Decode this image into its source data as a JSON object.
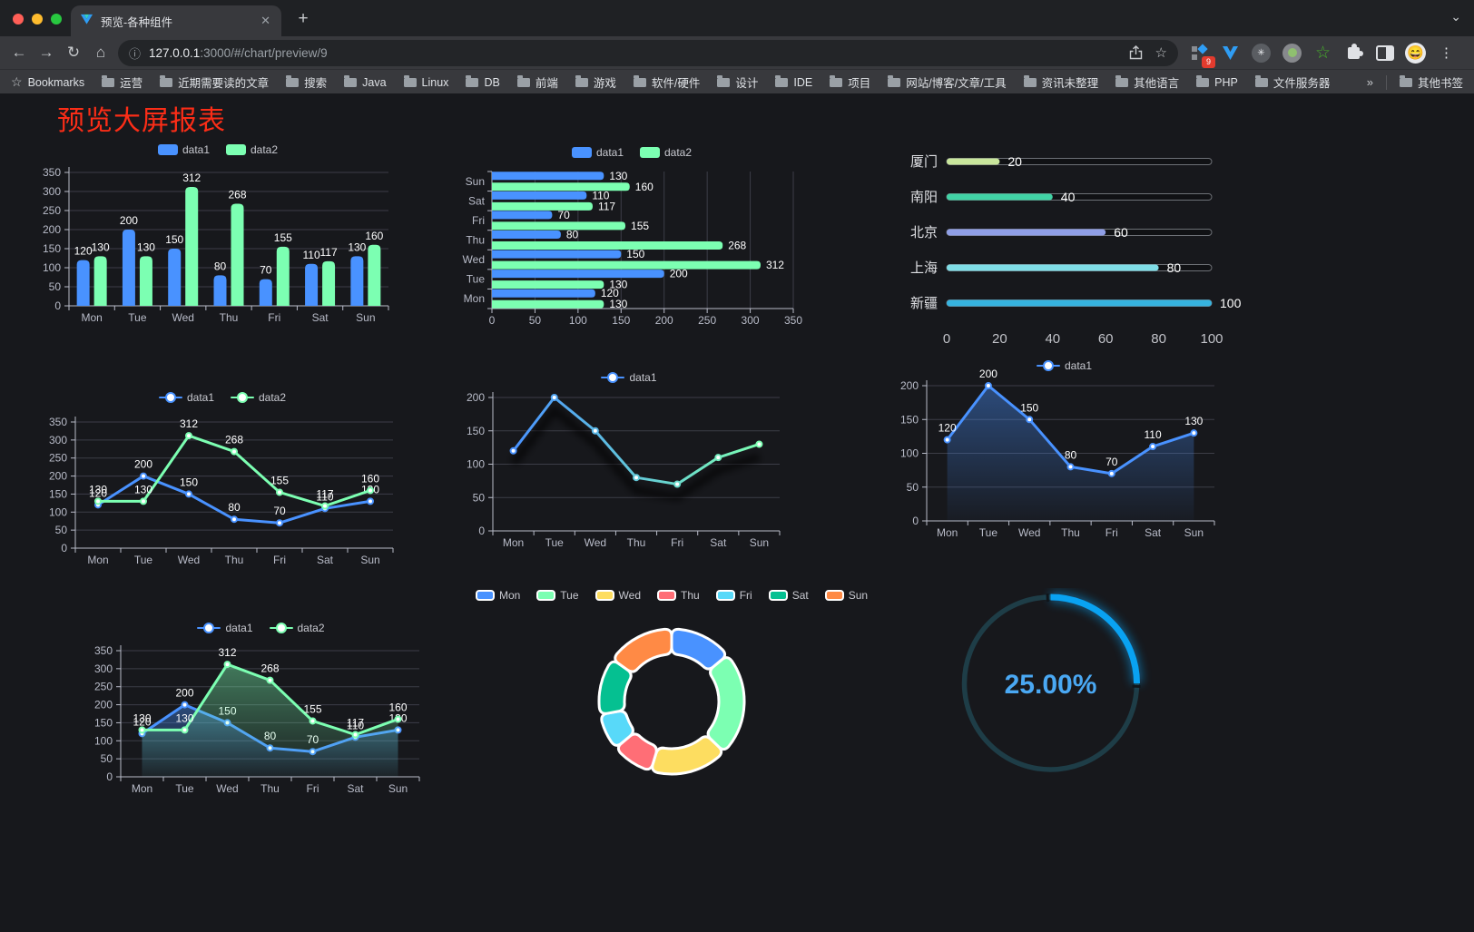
{
  "browser": {
    "tab_title": "预览-各种组件",
    "new_tab_glyph": "+",
    "close_glyph": "✕",
    "tab_search_glyph": "⌄",
    "url_host": "127.0.0.1",
    "url_rest": ":3000/#/chart/preview/9",
    "back_glyph": "←",
    "forward_glyph": "→",
    "reload_glyph": "↻",
    "home_glyph": "⌂",
    "info_glyph": "ⓘ",
    "star_glyph": "☆",
    "extension_badge": "9",
    "menu_glyph": "⋮",
    "avatar_glyph": "😄",
    "bookmarks_label": "Bookmarks",
    "bookmarks": [
      "运营",
      "近期需要读的文章",
      "搜索",
      "Java",
      "Linux",
      "DB",
      "前端",
      "游戏",
      "软件/硬件",
      "设计",
      "IDE",
      "项目",
      "网站/博客/文章/工具",
      "资讯未整理",
      "其他语言",
      "PHP",
      "文件服务器"
    ],
    "overflow_chevron": "»",
    "other_bookmarks": "其他书签"
  },
  "page": {
    "title": "预览大屏报表",
    "title_color": "#fb2d17",
    "background": "#17181c"
  },
  "chart_data": [
    {
      "id": "bar-v",
      "type": "bar",
      "categories": [
        "Mon",
        "Tue",
        "Wed",
        "Thu",
        "Fri",
        "Sat",
        "Sun"
      ],
      "series": [
        {
          "name": "data1",
          "color": "#4992ff",
          "values": [
            120,
            200,
            150,
            80,
            70,
            110,
            130
          ]
        },
        {
          "name": "data2",
          "color": "#7cffb2",
          "values": [
            130,
            130,
            312,
            268,
            155,
            117,
            160
          ]
        }
      ],
      "ylim": [
        0,
        350
      ],
      "ystep": 50,
      "value_labels": true,
      "legend": {
        "icon": "roundRect",
        "items": [
          {
            "label": "data1",
            "color": "#4992ff"
          },
          {
            "label": "data2",
            "color": "#7cffb2"
          }
        ]
      }
    },
    {
      "id": "bar-h",
      "type": "bar-horizontal",
      "categories": [
        "Mon",
        "Tue",
        "Wed",
        "Thu",
        "Fri",
        "Sat",
        "Sun"
      ],
      "series": [
        {
          "name": "data1",
          "color": "#4992ff",
          "values": [
            120,
            200,
            150,
            80,
            70,
            110,
            130
          ]
        },
        {
          "name": "data2",
          "color": "#7cffb2",
          "values": [
            130,
            130,
            312,
            268,
            155,
            117,
            160
          ]
        }
      ],
      "xlim": [
        0,
        350
      ],
      "xstep": 50,
      "value_labels": true,
      "legend": {
        "icon": "roundRect",
        "items": [
          {
            "label": "data1",
            "color": "#4992ff"
          },
          {
            "label": "data2",
            "color": "#7cffb2"
          }
        ]
      }
    },
    {
      "id": "progress",
      "type": "progress",
      "items": [
        {
          "label": "厦门",
          "value": 20,
          "color": "#c9e69c"
        },
        {
          "label": "南阳",
          "value": 40,
          "color": "#41d3a5"
        },
        {
          "label": "北京",
          "value": 60,
          "color": "#8f9ee6"
        },
        {
          "label": "上海",
          "value": 80,
          "color": "#7fdde6"
        },
        {
          "label": "新疆",
          "value": 100,
          "color": "#36b3df"
        }
      ],
      "xlim": [
        0,
        100
      ],
      "xticks": [
        0,
        20,
        40,
        60,
        80,
        100
      ]
    },
    {
      "id": "line-dual",
      "type": "line",
      "categories": [
        "Mon",
        "Tue",
        "Wed",
        "Thu",
        "Fri",
        "Sat",
        "Sun"
      ],
      "series": [
        {
          "name": "data1",
          "color": "#4992ff",
          "values": [
            120,
            200,
            150,
            80,
            70,
            110,
            130
          ]
        },
        {
          "name": "data2",
          "color": "#7cffb2",
          "values": [
            130,
            130,
            312,
            268,
            155,
            117,
            160
          ]
        }
      ],
      "ylim": [
        0,
        350
      ],
      "ystep": 50,
      "value_labels": true,
      "legend": {
        "icon": "circle",
        "items": [
          {
            "label": "data1",
            "color": "#4992ff"
          },
          {
            "label": "data2",
            "color": "#7cffb2"
          }
        ]
      }
    },
    {
      "id": "line-gradient",
      "type": "line",
      "categories": [
        "Mon",
        "Tue",
        "Wed",
        "Thu",
        "Fri",
        "Sat",
        "Sun"
      ],
      "series": [
        {
          "name": "data1",
          "gradient": [
            "#4992ff",
            "#7cffb2"
          ],
          "values": [
            120,
            200,
            150,
            80,
            70,
            110,
            130
          ]
        }
      ],
      "ylim": [
        0,
        200
      ],
      "ystep": 50,
      "value_labels": false,
      "shadow": true,
      "legend": {
        "icon": "circle",
        "items": [
          {
            "label": "data1",
            "color": "#4992ff"
          }
        ]
      }
    },
    {
      "id": "area-single",
      "type": "line",
      "categories": [
        "Mon",
        "Tue",
        "Wed",
        "Thu",
        "Fri",
        "Sat",
        "Sun"
      ],
      "series": [
        {
          "name": "data1",
          "color": "#4992ff",
          "area": true,
          "values": [
            120,
            200,
            150,
            80,
            70,
            110,
            130
          ]
        }
      ],
      "ylim": [
        0,
        200
      ],
      "ystep": 50,
      "value_labels": true,
      "legend": {
        "icon": "circle",
        "items": [
          {
            "label": "data1",
            "color": "#4992ff"
          }
        ]
      }
    },
    {
      "id": "area-dual",
      "type": "line",
      "categories": [
        "Mon",
        "Tue",
        "Wed",
        "Thu",
        "Fri",
        "Sat",
        "Sun"
      ],
      "series": [
        {
          "name": "data1",
          "color": "#4992ff",
          "area": true,
          "values": [
            120,
            200,
            150,
            80,
            70,
            110,
            130
          ]
        },
        {
          "name": "data2",
          "color": "#7cffb2",
          "area": true,
          "values": [
            130,
            130,
            312,
            268,
            155,
            117,
            160
          ]
        }
      ],
      "ylim": [
        0,
        350
      ],
      "ystep": 50,
      "value_labels": true,
      "legend": {
        "icon": "circle",
        "items": [
          {
            "label": "data1",
            "color": "#4992ff"
          },
          {
            "label": "data2",
            "color": "#7cffb2"
          }
        ]
      }
    },
    {
      "id": "donut",
      "type": "pie",
      "items": [
        {
          "label": "Mon",
          "value": 120,
          "color": "#4992ff"
        },
        {
          "label": "Tue",
          "value": 200,
          "color": "#7cffb2"
        },
        {
          "label": "Wed",
          "value": 150,
          "color": "#fddd60"
        },
        {
          "label": "Thu",
          "value": 80,
          "color": "#ff6e76"
        },
        {
          "label": "Fri",
          "value": 70,
          "color": "#58d9f9"
        },
        {
          "label": "Sat",
          "value": 110,
          "color": "#05c091"
        },
        {
          "label": "Sun",
          "value": 130,
          "color": "#ff8a45"
        }
      ],
      "legend": {
        "icon": "borderRect",
        "items": [
          {
            "label": "Mon",
            "color": "#4992ff"
          },
          {
            "label": "Tue",
            "color": "#7cffb2"
          },
          {
            "label": "Wed",
            "color": "#fddd60"
          },
          {
            "label": "Thu",
            "color": "#ff6e76"
          },
          {
            "label": "Fri",
            "color": "#58d9f9"
          },
          {
            "label": "Sat",
            "color": "#05c091"
          },
          {
            "label": "Sun",
            "color": "#ff8a45"
          }
        ]
      }
    },
    {
      "id": "gauge",
      "type": "gauge",
      "percent": 25,
      "label": "25.00%",
      "arc_color": "#09a2f2",
      "track_color": "#1e3d47",
      "text_color": "#4aa8f3"
    }
  ]
}
